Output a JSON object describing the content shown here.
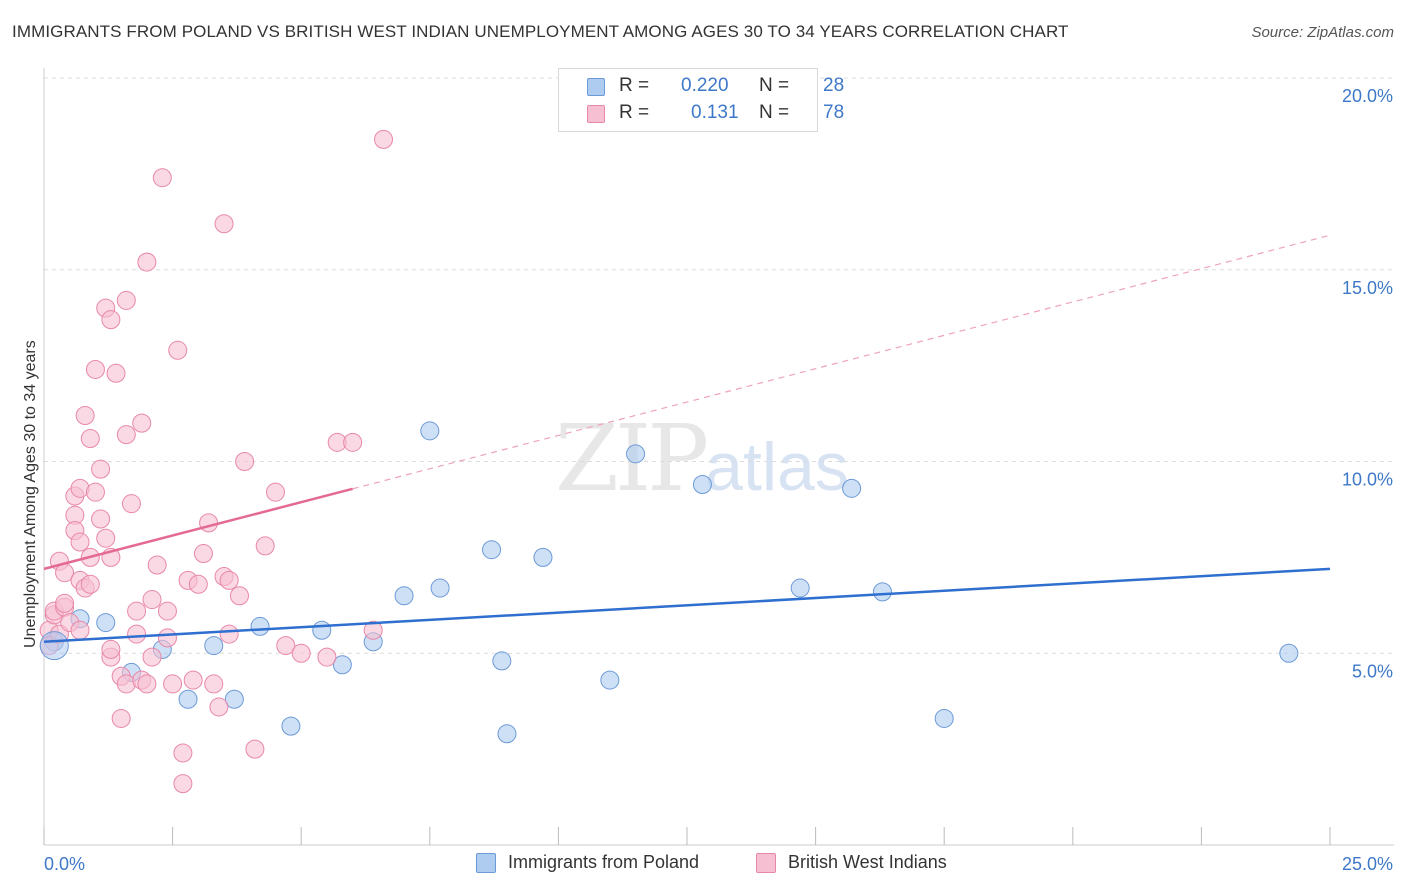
{
  "title": "IMMIGRANTS FROM POLAND VS BRITISH WEST INDIAN UNEMPLOYMENT AMONG AGES 30 TO 34 YEARS CORRELATION CHART",
  "source": "Source: ZipAtlas.com",
  "watermark": {
    "zip": "ZIP",
    "atlas": "atlas"
  },
  "legend": {
    "r_label": "R =",
    "n_label": "N =",
    "series": [
      {
        "name": "Immigrants from Poland",
        "r": "0.220",
        "n": "28",
        "color": "#aecbf0",
        "stroke": "#6c9ad6"
      },
      {
        "name": "British West Indians",
        "r": "0.131",
        "n": "78",
        "color": "#f7c0d2",
        "stroke": "#e888a8"
      }
    ]
  },
  "chart_data": {
    "type": "scatter",
    "title": "IMMIGRANTS FROM POLAND VS BRITISH WEST INDIAN UNEMPLOYMENT AMONG AGES 30 TO 34 YEARS CORRELATION CHART",
    "xlabel": "",
    "ylabel": "Unemployment Among Ages 30 to 34 years",
    "xlim": [
      0,
      25
    ],
    "ylim": [
      0,
      20
    ],
    "x_tick_labels": [
      "0.0%",
      "25.0%"
    ],
    "y_ticks": [
      5,
      10,
      15,
      20
    ],
    "y_tick_labels": [
      "5.0%",
      "10.0%",
      "15.0%",
      "20.0%"
    ],
    "grid": true,
    "series": [
      {
        "name": "Immigrants from Poland",
        "color": "#6c9ad6",
        "fill": "#aecbf0",
        "trend": {
          "x0": 0,
          "y0": 5.3,
          "x1": 25,
          "y1": 7.2,
          "dashed_from": null
        },
        "points": [
          [
            0.2,
            5.3
          ],
          [
            0.7,
            5.9
          ],
          [
            1.2,
            5.8
          ],
          [
            1.7,
            4.5
          ],
          [
            2.3,
            5.1
          ],
          [
            2.8,
            3.8
          ],
          [
            3.3,
            5.2
          ],
          [
            3.7,
            3.8
          ],
          [
            4.2,
            5.7
          ],
          [
            4.8,
            3.1
          ],
          [
            5.4,
            5.6
          ],
          [
            5.8,
            4.7
          ],
          [
            6.4,
            5.3
          ],
          [
            7.0,
            6.5
          ],
          [
            7.5,
            10.8
          ],
          [
            7.7,
            6.7
          ],
          [
            8.7,
            7.7
          ],
          [
            8.9,
            4.8
          ],
          [
            9.0,
            2.9
          ],
          [
            9.7,
            7.5
          ],
          [
            11.0,
            4.3
          ],
          [
            11.5,
            10.2
          ],
          [
            12.8,
            9.4
          ],
          [
            14.7,
            6.7
          ],
          [
            15.7,
            9.3
          ],
          [
            16.3,
            6.6
          ],
          [
            17.5,
            3.3
          ],
          [
            24.2,
            5.0
          ]
        ]
      },
      {
        "name": "British West Indians",
        "color": "#e888a8",
        "fill": "#f7c0d2",
        "trend": {
          "x0": 0,
          "y0": 7.2,
          "x1": 25,
          "y1": 15.9,
          "solid_until": 6.0
        },
        "points": [
          [
            0.1,
            5.6
          ],
          [
            0.1,
            5.2
          ],
          [
            0.2,
            6.0
          ],
          [
            0.2,
            6.1
          ],
          [
            0.3,
            7.4
          ],
          [
            0.3,
            5.5
          ],
          [
            0.4,
            7.1
          ],
          [
            0.4,
            6.2
          ],
          [
            0.4,
            6.3
          ],
          [
            0.5,
            5.8
          ],
          [
            0.6,
            9.1
          ],
          [
            0.6,
            8.6
          ],
          [
            0.6,
            8.2
          ],
          [
            0.7,
            9.3
          ],
          [
            0.7,
            6.9
          ],
          [
            0.7,
            5.6
          ],
          [
            0.7,
            7.9
          ],
          [
            0.8,
            11.2
          ],
          [
            0.8,
            6.7
          ],
          [
            0.9,
            10.6
          ],
          [
            0.9,
            7.5
          ],
          [
            0.9,
            6.8
          ],
          [
            1.0,
            12.4
          ],
          [
            1.0,
            9.2
          ],
          [
            1.1,
            9.8
          ],
          [
            1.1,
            8.5
          ],
          [
            1.2,
            14.0
          ],
          [
            1.2,
            8.0
          ],
          [
            1.3,
            13.7
          ],
          [
            1.3,
            7.5
          ],
          [
            1.3,
            4.9
          ],
          [
            1.3,
            5.1
          ],
          [
            1.4,
            12.3
          ],
          [
            1.5,
            4.4
          ],
          [
            1.5,
            3.3
          ],
          [
            1.6,
            14.2
          ],
          [
            1.6,
            10.7
          ],
          [
            1.6,
            4.2
          ],
          [
            1.7,
            8.9
          ],
          [
            1.8,
            6.1
          ],
          [
            1.8,
            5.5
          ],
          [
            1.9,
            11.0
          ],
          [
            1.9,
            4.3
          ],
          [
            2.0,
            15.2
          ],
          [
            2.0,
            4.2
          ],
          [
            2.1,
            6.4
          ],
          [
            2.1,
            4.9
          ],
          [
            2.2,
            7.3
          ],
          [
            2.3,
            17.4
          ],
          [
            2.4,
            6.1
          ],
          [
            2.4,
            5.4
          ],
          [
            2.5,
            4.2
          ],
          [
            2.6,
            12.9
          ],
          [
            2.7,
            2.4
          ],
          [
            2.7,
            1.6
          ],
          [
            2.8,
            6.9
          ],
          [
            2.9,
            4.3
          ],
          [
            3.0,
            6.8
          ],
          [
            3.1,
            7.6
          ],
          [
            3.2,
            8.4
          ],
          [
            3.3,
            4.2
          ],
          [
            3.4,
            3.6
          ],
          [
            3.5,
            7.0
          ],
          [
            3.5,
            16.2
          ],
          [
            3.6,
            6.9
          ],
          [
            3.6,
            5.5
          ],
          [
            3.8,
            6.5
          ],
          [
            3.9,
            10.0
          ],
          [
            4.1,
            2.5
          ],
          [
            4.3,
            7.8
          ],
          [
            4.5,
            9.2
          ],
          [
            4.7,
            5.2
          ],
          [
            5.0,
            5.0
          ],
          [
            5.5,
            4.9
          ],
          [
            5.7,
            10.5
          ],
          [
            6.0,
            10.5
          ],
          [
            6.4,
            5.6
          ],
          [
            6.6,
            18.4
          ]
        ]
      }
    ]
  }
}
